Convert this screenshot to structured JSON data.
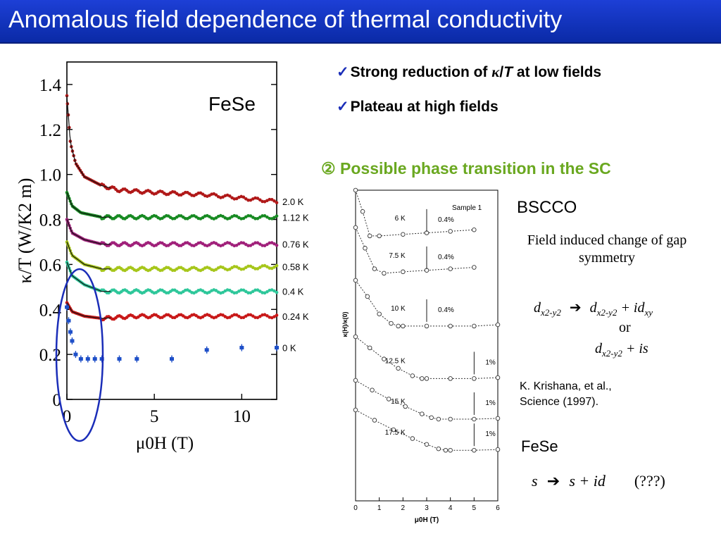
{
  "slide": {
    "title": "Anomalous field dependence of thermal conductivity",
    "bullets": [
      {
        "prefix": "Strong reduction of ",
        "kappa": "κ",
        "slash": "/",
        "T": "T",
        "suffix": " at low fields"
      },
      {
        "text": "Plateau at high fields"
      }
    ],
    "section_heading": "② Possible phase transition in the SC",
    "bscco_label": "BSCCO",
    "field_induced_text": "Field induced change of gap symmetry",
    "eq1": {
      "lhs": "d",
      "lhs_sub": "x2-y2",
      "rhs1": "d",
      "rhs1_sub": "x2-y2",
      "rhs2": "+ id",
      "rhs2_sub": "xy"
    },
    "or": "or",
    "eq2": {
      "a": "d",
      "a_sub": "x2-y2",
      "b": "+ is"
    },
    "reference": [
      "K. Krishana, et al.,",
      "Science (1997)."
    ],
    "fese_label": "FeSe",
    "eq3": {
      "a": "s",
      "b": "s + id",
      "c": "(???)"
    },
    "accent_color": "#6aa820",
    "title_bg": "#1d3fd6",
    "check_color": "#1a2db8"
  },
  "chart_data": [
    {
      "type": "scatter",
      "title": "FeSe",
      "xlabel": "μ0H (T)",
      "ylabel": "κ/T (W/K2 m)",
      "xlim": [
        0,
        12
      ],
      "ylim": [
        0,
        1.5
      ],
      "xticks": [
        "0",
        "5",
        "10"
      ],
      "yticks": [
        "0",
        "0.2",
        "0.4",
        "0.6",
        "0.8",
        "1.0",
        "1.2",
        "1.4"
      ],
      "series": [
        {
          "name": "2.0 K",
          "color": "#b01818",
          "x": [
            0,
            0.2,
            0.5,
            1,
            2,
            3,
            5,
            8,
            12
          ],
          "y": [
            1.35,
            1.14,
            1.05,
            0.99,
            0.95,
            0.93,
            0.92,
            0.91,
            0.88
          ]
        },
        {
          "name": "1.12 K",
          "color": "#178a22",
          "x": [
            0,
            0.3,
            0.8,
            2,
            4,
            8,
            12
          ],
          "y": [
            0.92,
            0.86,
            0.83,
            0.81,
            0.81,
            0.81,
            0.81
          ]
        },
        {
          "name": "0.76 K",
          "color": "#a0207a",
          "x": [
            0,
            0.3,
            1,
            2,
            4,
            8,
            12
          ],
          "y": [
            0.8,
            0.74,
            0.71,
            0.69,
            0.69,
            0.69,
            0.69
          ]
        },
        {
          "name": "0.58 K",
          "color": "#a6c61a",
          "x": [
            0,
            0.3,
            1,
            2,
            4,
            8,
            12
          ],
          "y": [
            0.7,
            0.64,
            0.6,
            0.58,
            0.58,
            0.58,
            0.59
          ]
        },
        {
          "name": "0.4 K",
          "color": "#2ec79a",
          "x": [
            0,
            0.3,
            1,
            2,
            4,
            8,
            12
          ],
          "y": [
            0.61,
            0.55,
            0.51,
            0.48,
            0.48,
            0.48,
            0.48
          ]
        },
        {
          "name": "0.24 K",
          "color": "#c81818",
          "x": [
            0,
            0.3,
            1,
            2,
            4,
            8,
            12
          ],
          "y": [
            0.43,
            0.39,
            0.37,
            0.36,
            0.37,
            0.37,
            0.37
          ]
        },
        {
          "name": "0 K",
          "color": "#1e4fc8",
          "x": [
            0,
            0.1,
            0.2,
            0.3,
            0.5,
            0.8,
            1.2,
            1.6,
            2,
            3,
            4,
            6,
            8,
            10,
            12
          ],
          "y": [
            0.41,
            0.35,
            0.3,
            0.26,
            0.2,
            0.18,
            0.18,
            0.18,
            0.18,
            0.18,
            0.18,
            0.18,
            0.22,
            0.23,
            0.23
          ]
        }
      ]
    },
    {
      "type": "line",
      "title": "Sample 1",
      "xlabel": "μ0H (T)",
      "ylabel": "κ(H)/κ(0)",
      "xlim": [
        0,
        6
      ],
      "xticks": [
        "0",
        "1",
        "2",
        "3",
        "4",
        "5",
        "6"
      ],
      "series": [
        {
          "name": "6 K",
          "scale": "0.4%",
          "x": [
            0,
            0.3,
            0.6,
            1,
            2,
            3,
            4,
            5
          ],
          "y": [
            1,
            0.86,
            0.7,
            0.7,
            0.71,
            0.72,
            0.73,
            0.74
          ]
        },
        {
          "name": "7.5 K",
          "scale": "0.4%",
          "x": [
            0,
            0.4,
            0.8,
            1.2,
            2,
            3,
            4,
            5
          ],
          "y": [
            1,
            0.86,
            0.72,
            0.69,
            0.7,
            0.71,
            0.72,
            0.73
          ]
        },
        {
          "name": "10 K",
          "scale": "0.4%",
          "x": [
            0,
            0.5,
            1,
            1.5,
            1.8,
            2,
            3,
            4,
            5,
            6
          ],
          "y": [
            1,
            0.88,
            0.75,
            0.68,
            0.66,
            0.66,
            0.66,
            0.66,
            0.66,
            0.67
          ]
        },
        {
          "name": "12.5 K",
          "scale": "1%",
          "x": [
            0,
            0.6,
            1.2,
            1.8,
            2.4,
            2.8,
            3,
            4,
            5,
            6
          ],
          "y": [
            1,
            0.88,
            0.76,
            0.66,
            0.58,
            0.55,
            0.55,
            0.55,
            0.55,
            0.56
          ]
        },
        {
          "name": "15 K",
          "scale": "1%",
          "x": [
            0,
            0.7,
            1.4,
            2.1,
            2.8,
            3.2,
            3.5,
            4,
            5,
            6
          ],
          "y": [
            1,
            0.87,
            0.75,
            0.65,
            0.55,
            0.5,
            0.48,
            0.48,
            0.48,
            0.49
          ]
        },
        {
          "name": "17.5 K",
          "scale": "1%",
          "x": [
            0,
            0.8,
            1.6,
            2.4,
            3,
            3.5,
            3.8,
            4,
            5,
            6
          ],
          "y": [
            1,
            0.86,
            0.73,
            0.61,
            0.53,
            0.47,
            0.45,
            0.45,
            0.45,
            0.46
          ]
        }
      ]
    }
  ]
}
